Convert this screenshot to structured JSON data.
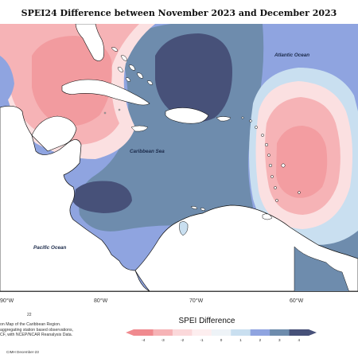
{
  "title": "SPEI24 Difference between November 2023 and December 2023",
  "map": {
    "ocean_labels": {
      "atlantic": "Atlantic Ocean",
      "caribbean": "Caribbean Sea",
      "pacific": "Pacific Ocean"
    },
    "longitude_labels": [
      "90°W",
      "80°W",
      "70°W",
      "60°W"
    ],
    "small_mark": "22",
    "fill_colors": {
      "land": "#ffffff",
      "coast": "#111111",
      "strong_dry": "#f08a8f",
      "moderate_dry": "#f6b3b6",
      "light_dry": "#fbe0e1",
      "neutral": "#f4f6f8",
      "light_wet": "#c9dff0",
      "moderate_wet": "#8fa4e0",
      "strong_wet": "#6e8cad",
      "extreme_wet": "#475179"
    }
  },
  "source_note": [
    "on Map of the Caribbean Region.",
    "aggregating station based observations,",
    "CF, with NCEP/NCAR Reanalysis Data."
  ],
  "credit": "CIMH December-23",
  "legend": {
    "title": "SPEI Difference",
    "ticks": [
      "-4",
      "-3",
      "-2",
      "-1",
      "0",
      "1",
      "2",
      "3",
      "4"
    ],
    "colors": [
      "#f08a8f",
      "#f6b3b6",
      "#fbd8da",
      "#fdeeef",
      "#eef3f7",
      "#c9dff0",
      "#8fa4e0",
      "#6e8cad",
      "#475179"
    ]
  }
}
